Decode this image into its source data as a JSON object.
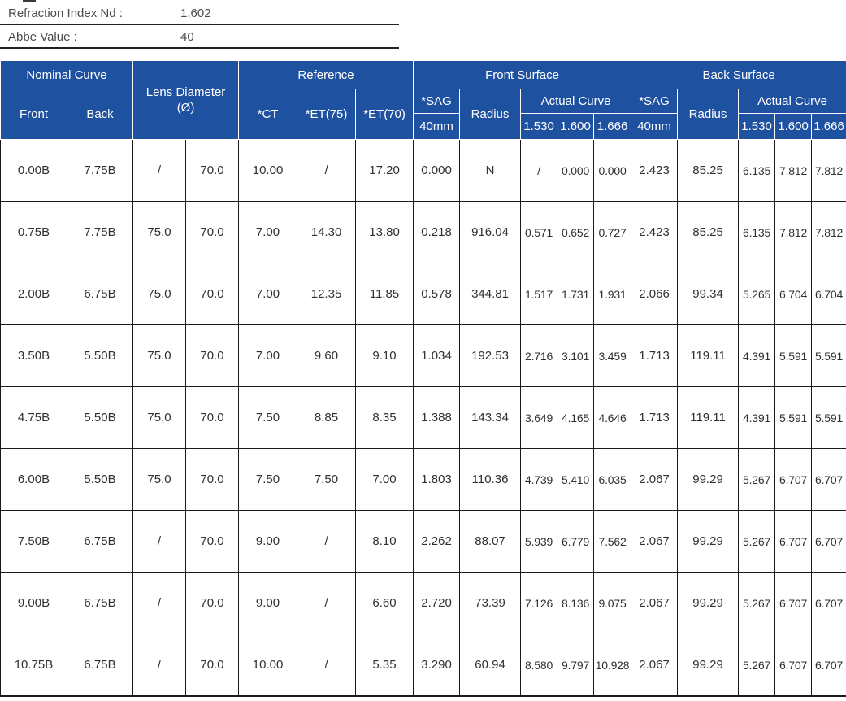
{
  "info": {
    "rows": [
      {
        "label": "Refraction Index Nd :",
        "value": "1.602"
      },
      {
        "label": "Abbe Value :",
        "value": "40"
      }
    ]
  },
  "colors": {
    "header_bg": "#1f51a1",
    "header_text": "#ffffff",
    "body_text": "#303030",
    "grid_line": "#1a1a1a"
  },
  "table": {
    "header": {
      "nominal_curve": "Nominal Curve",
      "front": "Front",
      "back": "Back",
      "lens_diameter": "Lens Diameter\n(Ø)",
      "reference": "Reference",
      "ct": "*CT",
      "et75": "*ET(75)",
      "et70": "*ET(70)",
      "front_surface": "Front Surface",
      "back_surface": "Back Surface",
      "sag": "*SAG",
      "sag_sub": "40mm",
      "radius": "Radius",
      "actual_curve": "Actual Curve",
      "index_1530": "1.530",
      "index_1600": "1.600",
      "index_1666": "1.666"
    },
    "rows": [
      [
        "0.00B",
        "7.75B",
        "/",
        "70.0",
        "10.00",
        "/",
        "17.20",
        "0.000",
        "N",
        "/",
        "0.000",
        "0.000",
        "2.423",
        "85.25",
        "6.135",
        "7.812",
        "7.812"
      ],
      [
        "0.75B",
        "7.75B",
        "75.0",
        "70.0",
        "7.00",
        "14.30",
        "13.80",
        "0.218",
        "916.04",
        "0.571",
        "0.652",
        "0.727",
        "2.423",
        "85.25",
        "6.135",
        "7.812",
        "7.812"
      ],
      [
        "2.00B",
        "6.75B",
        "75.0",
        "70.0",
        "7.00",
        "12.35",
        "11.85",
        "0.578",
        "344.81",
        "1.517",
        "1.731",
        "1.931",
        "2.066",
        "99.34",
        "5.265",
        "6.704",
        "6.704"
      ],
      [
        "3.50B",
        "5.50B",
        "75.0",
        "70.0",
        "7.00",
        "9.60",
        "9.10",
        "1.034",
        "192.53",
        "2.716",
        "3.101",
        "3.459",
        "1.713",
        "119.11",
        "4.391",
        "5.591",
        "5.591"
      ],
      [
        "4.75B",
        "5.50B",
        "75.0",
        "70.0",
        "7.50",
        "8.85",
        "8.35",
        "1.388",
        "143.34",
        "3.649",
        "4.165",
        "4.646",
        "1.713",
        "119.11",
        "4.391",
        "5.591",
        "5.591"
      ],
      [
        "6.00B",
        "5.50B",
        "75.0",
        "70.0",
        "7.50",
        "7.50",
        "7.00",
        "1.803",
        "110.36",
        "4.739",
        "5.410",
        "6.035",
        "2.067",
        "99.29",
        "5.267",
        "6.707",
        "6.707"
      ],
      [
        "7.50B",
        "6.75B",
        "/",
        "70.0",
        "9.00",
        "/",
        "8.10",
        "2.262",
        "88.07",
        "5.939",
        "6.779",
        "7.562",
        "2.067",
        "99.29",
        "5.267",
        "6.707",
        "6.707"
      ],
      [
        "9.00B",
        "6.75B",
        "/",
        "70.0",
        "9.00",
        "/",
        "6.60",
        "2.720",
        "73.39",
        "7.126",
        "8.136",
        "9.075",
        "2.067",
        "99.29",
        "5.267",
        "6.707",
        "6.707"
      ],
      [
        "10.75B",
        "6.75B",
        "/",
        "70.0",
        "10.00",
        "/",
        "5.35",
        "3.290",
        "60.94",
        "8.580",
        "9.797",
        "10.928",
        "2.067",
        "99.29",
        "5.267",
        "6.707",
        "6.707"
      ]
    ]
  }
}
